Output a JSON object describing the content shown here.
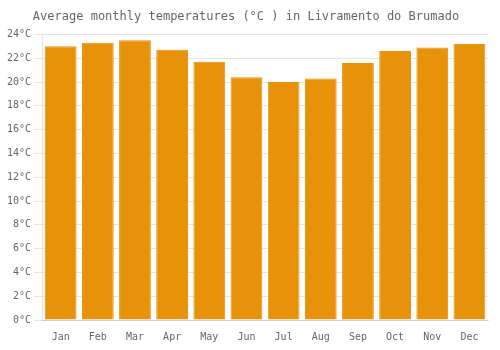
{
  "chart_data": {
    "type": "bar",
    "title": "Average monthly temperatures (°C ) in Livramento do Brumado",
    "categories": [
      "Jan",
      "Feb",
      "Mar",
      "Apr",
      "May",
      "Jun",
      "Jul",
      "Aug",
      "Sep",
      "Oct",
      "Nov",
      "Dec"
    ],
    "values": [
      23.0,
      23.3,
      23.5,
      22.7,
      21.7,
      20.4,
      20.0,
      20.3,
      21.6,
      22.6,
      22.9,
      23.2
    ],
    "color": "#E8920A",
    "ylim": [
      0,
      24
    ],
    "yticks": [
      {
        "value": 0,
        "label": "0°C"
      },
      {
        "value": 2,
        "label": "2°C"
      },
      {
        "value": 4,
        "label": "4°C"
      },
      {
        "value": 6,
        "label": "6°C"
      },
      {
        "value": 8,
        "label": "8°C"
      },
      {
        "value": 10,
        "label": "10°C"
      },
      {
        "value": 12,
        "label": "12°C"
      },
      {
        "value": 14,
        "label": "14°C"
      },
      {
        "value": 16,
        "label": "16°C"
      },
      {
        "value": 18,
        "label": "18°C"
      },
      {
        "value": 20,
        "label": "20°C"
      },
      {
        "value": 22,
        "label": "22°C"
      },
      {
        "value": 24,
        "label": "24°C"
      }
    ],
    "grid": true
  }
}
